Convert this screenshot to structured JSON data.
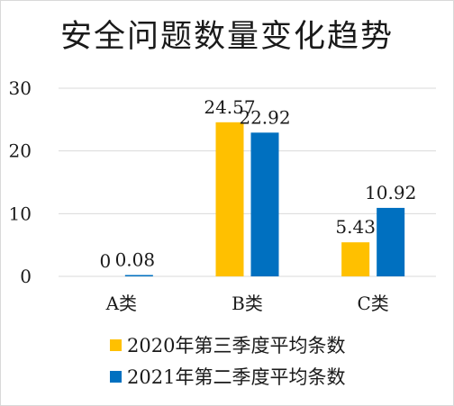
{
  "chart_data": {
    "type": "bar",
    "title": "安全问题数量变化趋势",
    "categories": [
      "A类",
      "B类",
      "C类"
    ],
    "series": [
      {
        "name": "2020年第三季度平均条数",
        "values": [
          0,
          24.57,
          5.43
        ],
        "labels": [
          "0",
          "24.57",
          "5.43"
        ],
        "color": "#FFC000"
      },
      {
        "name": "2021年第二季度平均条数",
        "values": [
          0.08,
          22.92,
          10.92
        ],
        "labels": [
          "0.08",
          "22.92",
          "10.92"
        ],
        "color": "#0070C0"
      }
    ],
    "yticks": [
      "0",
      "10",
      "20",
      "30"
    ],
    "ylim": [
      0,
      30
    ],
    "grid": true,
    "legend_position": "bottom"
  }
}
